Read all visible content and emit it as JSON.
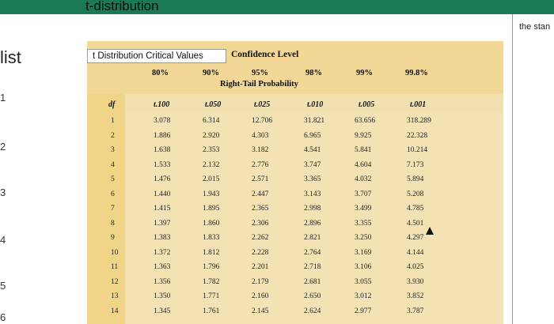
{
  "app": {
    "page_title": "t-distribution"
  },
  "left_panel": {
    "title": "list",
    "items": [
      "1",
      "2",
      "3",
      "4",
      "5",
      "6"
    ]
  },
  "right_panel": {
    "text": "the stan"
  },
  "table": {
    "box_title": "t Distribution Critical Values",
    "confidence_label": "Confidence Level",
    "right_tail_label": "Right-Tail Probability",
    "headers_pct": [
      "80%",
      "90%",
      "95%",
      "98%",
      "99%",
      "99.8%"
    ],
    "df_label": "df",
    "t_headers": [
      "t.100",
      "t.050",
      "t.025",
      "t.010",
      "t.005",
      "t.001"
    ],
    "rows": [
      {
        "df": "1",
        "v": [
          "3.078",
          "6.314",
          "12.706",
          "31.821",
          "63.656",
          "318.289"
        ]
      },
      {
        "df": "2",
        "v": [
          "1.886",
          "2.920",
          "4.303",
          "6.965",
          "9.925",
          "22.328"
        ]
      },
      {
        "df": "3",
        "v": [
          "1.638",
          "2.353",
          "3.182",
          "4.541",
          "5.841",
          "10.214"
        ]
      },
      {
        "df": "4",
        "v": [
          "1.533",
          "2.132",
          "2.776",
          "3.747",
          "4.604",
          "7.173"
        ]
      },
      {
        "df": "5",
        "v": [
          "1.476",
          "2.015",
          "2.571",
          "3.365",
          "4.032",
          "5.894"
        ]
      },
      {
        "df": "6",
        "v": [
          "1.440",
          "1.943",
          "2.447",
          "3.143",
          "3.707",
          "5.208"
        ]
      },
      {
        "df": "7",
        "v": [
          "1.415",
          "1.895",
          "2.365",
          "2.998",
          "3.499",
          "4.785"
        ]
      },
      {
        "df": "8",
        "v": [
          "1.397",
          "1.860",
          "2.306",
          "2.896",
          "3.355",
          "4.501"
        ]
      },
      {
        "df": "9",
        "v": [
          "1.383",
          "1.833",
          "2.262",
          "2.821",
          "3.250",
          "4.297"
        ]
      },
      {
        "df": "10",
        "v": [
          "1.372",
          "1.812",
          "2.228",
          "2.764",
          "3.169",
          "4.144"
        ]
      },
      {
        "df": "11",
        "v": [
          "1.363",
          "1.796",
          "2.201",
          "2.718",
          "3.106",
          "4.025"
        ]
      },
      {
        "df": "12",
        "v": [
          "1.356",
          "1.782",
          "2.179",
          "2.681",
          "3.055",
          "3.930"
        ]
      },
      {
        "df": "13",
        "v": [
          "1.350",
          "1.771",
          "2.160",
          "2.650",
          "3.012",
          "3.852"
        ]
      },
      {
        "df": "14",
        "v": [
          "1.345",
          "1.761",
          "2.145",
          "2.624",
          "2.977",
          "3.787"
        ]
      }
    ]
  },
  "colors": {
    "topbar": "#1b7a53",
    "header_band": "#f2d797",
    "table_bg": "#f3e3b4"
  }
}
